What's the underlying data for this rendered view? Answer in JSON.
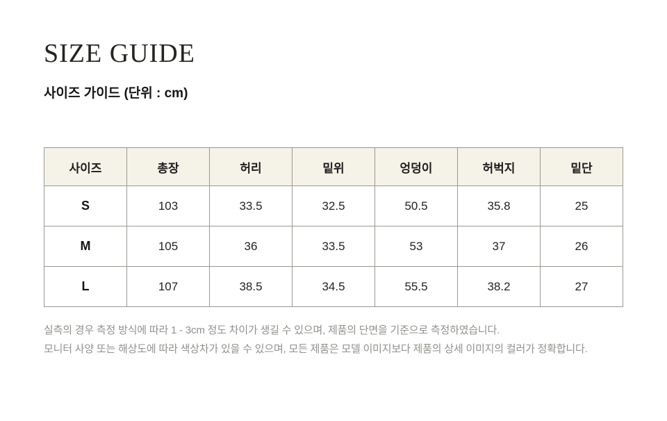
{
  "page": {
    "title": "SIZE GUIDE",
    "subtitle": "사이즈 가이드 (단위 : cm)"
  },
  "table": {
    "headers": [
      "사이즈",
      "총장",
      "허리",
      "밑위",
      "엉덩이",
      "허벅지",
      "밑단"
    ],
    "rows": [
      {
        "size": "S",
        "values": [
          "103",
          "33.5",
          "32.5",
          "50.5",
          "35.8",
          "25"
        ]
      },
      {
        "size": "M",
        "values": [
          "105",
          "36",
          "33.5",
          "53",
          "37",
          "26"
        ]
      },
      {
        "size": "L",
        "values": [
          "107",
          "38.5",
          "34.5",
          "55.5",
          "38.2",
          "27"
        ]
      }
    ]
  },
  "notes": [
    "실측의 경우 측정 방식에 따라 1 - 3cm 정도 차이가 생길 수 있으며, 제품의 단면을 기준으로 측정하였습니다.",
    "모니터 사양 또는 해상도에 따라 색상차가 있을 수 있으며, 모든 제품은 모델 이미지보다 제품의 상세 이미지의 컬러가 정확합니다."
  ],
  "colors": {
    "header_bg": "#f5f2e7",
    "border": "#999792",
    "title_text": "#262420",
    "body_text": "#222222",
    "note_text": "#91908c",
    "background": "#ffffff"
  }
}
